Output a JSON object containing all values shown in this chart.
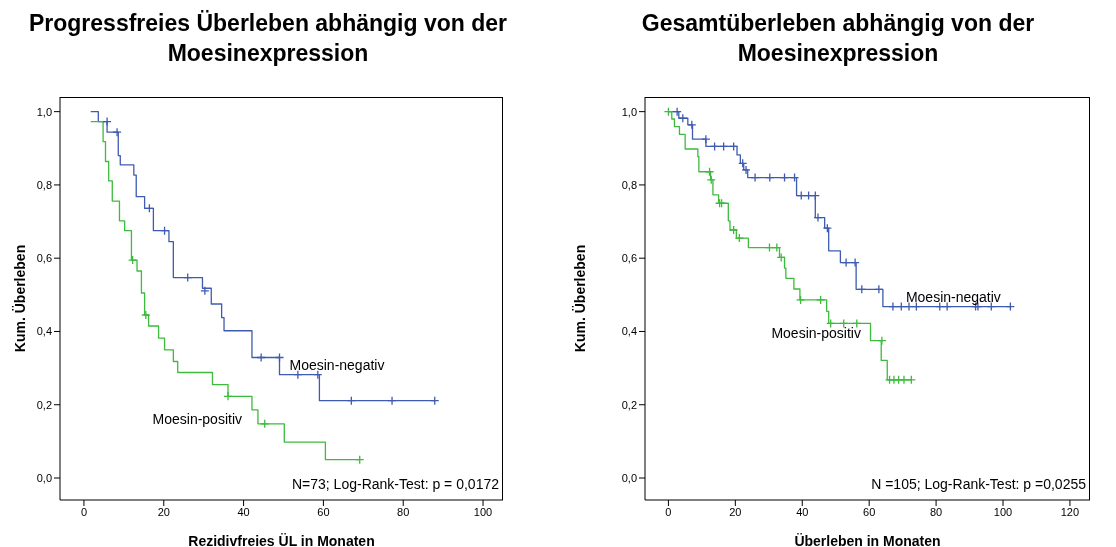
{
  "chart_data": [
    {
      "type": "step",
      "title": "Progressfreies Überleben abhängig von der Moesinexpression",
      "xlabel": "Rezidivfreies ÜL in Monaten",
      "ylabel": "Kum. Überleben",
      "xlim": [
        -6,
        105
      ],
      "xticks": [
        0,
        20,
        40,
        60,
        80,
        100
      ],
      "ylim": [
        -0.06,
        1.04
      ],
      "yticks": [
        {
          "value": 0,
          "label": "0,0"
        },
        {
          "value": 0.2,
          "label": "0,2"
        },
        {
          "value": 0.4,
          "label": "0,4"
        },
        {
          "value": 0.6,
          "label": "0,6"
        },
        {
          "value": 0.8,
          "label": "0,8"
        },
        {
          "value": 1,
          "label": "1,0"
        }
      ],
      "annotations": [
        "N=73; Log-Rank-Test: p = 0,0172"
      ],
      "series": [
        {
          "name": "Moesin-negativ",
          "color": "#3e5bb0",
          "x": [
            1.7,
            3.6,
            5.8,
            8.6,
            9.1,
            12.5,
            13.1,
            15.2,
            17.4,
            21.3,
            22.4,
            29.7,
            31.9,
            34.5,
            35.1,
            42.1,
            49,
            59,
            88
          ],
          "values": [
            1,
            0.973,
            0.944,
            0.88,
            0.855,
            0.827,
            0.768,
            0.736,
            0.675,
            0.645,
            0.547,
            0.518,
            0.475,
            0.438,
            0.402,
            0.329,
            0.282,
            0.211,
            0.211
          ]
        },
        {
          "name": "Moesin-positiv",
          "color": "#3dbb3d",
          "x": [
            1.7,
            4.8,
            5.4,
            6.2,
            7.1,
            8.9,
            10.2,
            11.9,
            13.3,
            14.4,
            15.2,
            16.2,
            18.7,
            20.2,
            22.4,
            23.5,
            32.2,
            36.1,
            42.1,
            43.6,
            50.2,
            60.5,
            69.1
          ],
          "values": [
            0.973,
            0.918,
            0.864,
            0.811,
            0.756,
            0.702,
            0.675,
            0.595,
            0.565,
            0.505,
            0.445,
            0.415,
            0.382,
            0.35,
            0.318,
            0.288,
            0.255,
            0.223,
            0.186,
            0.148,
            0.098,
            0.05,
            0.05
          ]
        },
        {
          "type": "scatter",
          "marker": "cross",
          "color": "#3e5bb0",
          "x": [
            5.8,
            8.3,
            16.4,
            20.2,
            26,
            30.3,
            44.4,
            49,
            53.6,
            58.6,
            67,
            77.2,
            87.9
          ],
          "values": [
            0.973,
            0.944,
            0.736,
            0.675,
            0.547,
            0.511,
            0.329,
            0.329,
            0.282,
            0.282,
            0.211,
            0.211,
            0.211
          ]
        },
        {
          "type": "scatter",
          "marker": "cross",
          "color": "#3dbb3d",
          "x": [
            12.2,
            15.5,
            36.1,
            45.3,
            69.1
          ],
          "values": [
            0.595,
            0.445,
            0.223,
            0.148,
            0.05
          ]
        }
      ]
    },
    {
      "type": "step",
      "title": "Gesamtüberleben abhängig von der Moesinexpression",
      "xlabel": "Überleben in Monaten",
      "ylabel": "Kum. Überleben",
      "xlim": [
        -7,
        126
      ],
      "xticks": [
        0,
        20,
        40,
        60,
        80,
        100,
        120
      ],
      "ylim": [
        -0.06,
        1.04
      ],
      "yticks": [
        {
          "value": 0,
          "label": "0,0"
        },
        {
          "value": 0.2,
          "label": "0,2"
        },
        {
          "value": 0.4,
          "label": "0,4"
        },
        {
          "value": 0.6,
          "label": "0,6"
        },
        {
          "value": 0.8,
          "label": "0,8"
        },
        {
          "value": 1,
          "label": "1,0"
        }
      ],
      "annotations": [
        "N =105; Log-Rank-Test: p =0,0255"
      ],
      "series": [
        {
          "name": "Moesin-negativ",
          "color": "#3e5bb0",
          "x": [
            0,
            3.1,
            5.8,
            7.2,
            11.2,
            20.5,
            21.5,
            22.5,
            23.7,
            38.3,
            43.9,
            46.7,
            47.9,
            51.4,
            56.1,
            64.1,
            102.5
          ],
          "values": [
            1,
            0.982,
            0.964,
            0.925,
            0.905,
            0.882,
            0.859,
            0.841,
            0.82,
            0.771,
            0.711,
            0.682,
            0.62,
            0.588,
            0.515,
            0.468,
            0.468
          ]
        },
        {
          "name": "Moesin-positiv",
          "color": "#3dbb3d",
          "x": [
            0,
            1,
            1.8,
            3.3,
            5,
            8.8,
            9.1,
            12.6,
            13.3,
            15,
            17.9,
            18.4,
            20.3,
            23.9,
            33.2,
            34.7,
            35.1,
            37.5,
            39.3,
            47.3,
            47.9,
            60.4,
            63.6,
            65.4,
            72.6
          ],
          "values": [
            1,
            0.98,
            0.959,
            0.938,
            0.898,
            0.877,
            0.836,
            0.814,
            0.773,
            0.75,
            0.702,
            0.677,
            0.655,
            0.629,
            0.602,
            0.573,
            0.545,
            0.516,
            0.486,
            0.455,
            0.422,
            0.375,
            0.321,
            0.268,
            0.268
          ]
        },
        {
          "type": "scatter",
          "marker": "cross",
          "color": "#3e5bb0",
          "x": [
            2.6,
            4.3,
            7,
            11.2,
            13.8,
            16.5,
            19.5,
            22.2,
            23.2,
            25.9,
            30.3,
            34.7,
            37.7,
            39.7,
            41.9,
            43.9,
            44.7,
            47.5,
            53.1,
            55.8,
            57.8,
            62.9,
            67.1,
            69.6,
            71.9,
            74.1,
            81.1,
            83.3,
            91.8,
            92.5,
            96.5,
            102.2
          ],
          "values": [
            1,
            0.982,
            0.964,
            0.925,
            0.905,
            0.905,
            0.905,
            0.859,
            0.841,
            0.82,
            0.82,
            0.82,
            0.82,
            0.771,
            0.771,
            0.771,
            0.711,
            0.682,
            0.588,
            0.588,
            0.515,
            0.515,
            0.468,
            0.468,
            0.468,
            0.468,
            0.468,
            0.468,
            0.468,
            0.468,
            0.468,
            0.468
          ]
        },
        {
          "type": "scatter",
          "marker": "cross",
          "color": "#3dbb3d",
          "x": [
            0,
            12.3,
            12.8,
            15.3,
            15.9,
            19.5,
            21.2,
            30.2,
            32.4,
            33.7,
            39.5,
            45.5,
            48.5,
            52.4,
            56.3,
            63.8,
            66.1,
            67.4,
            68.8,
            70.4,
            72.6
          ],
          "values": [
            1,
            0.836,
            0.814,
            0.75,
            0.75,
            0.677,
            0.655,
            0.629,
            0.629,
            0.602,
            0.486,
            0.486,
            0.422,
            0.422,
            0.422,
            0.375,
            0.268,
            0.268,
            0.268,
            0.268,
            0.268
          ]
        }
      ]
    }
  ]
}
